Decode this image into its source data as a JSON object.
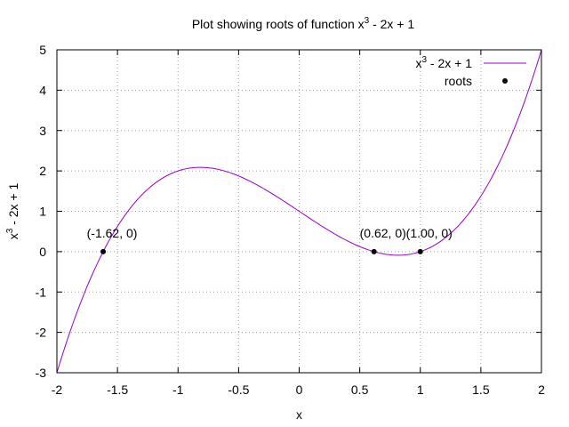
{
  "chart_data": {
    "type": "line",
    "title": {
      "prefix": "Plot showing roots of function x",
      "superscript": "3",
      "suffix": " - 2x + 1"
    },
    "xlabel": "x",
    "ylabel": {
      "prefix": "x",
      "superscript": "3",
      "suffix": " - 2x + 1"
    },
    "xlim": [
      -2,
      2
    ],
    "ylim": [
      -3,
      5
    ],
    "x_ticks": [
      "-2",
      "-1.5",
      "-1",
      "-0.5",
      "0",
      "0.5",
      "1",
      "1.5",
      "2"
    ],
    "y_ticks": [
      "-3",
      "-2",
      "-1",
      "0",
      "1",
      "2",
      "3",
      "4",
      "5"
    ],
    "grid": true,
    "legend_position": "top-right",
    "series": [
      {
        "name": {
          "prefix": "x",
          "superscript": "3",
          "suffix": " - 2x + 1"
        },
        "kind": "line",
        "color": "#9400d3",
        "function": "x^3 - 2x + 1",
        "points": [
          {
            "x": -2.0,
            "y": -3.0
          },
          {
            "x": -1.8,
            "y": -1.232
          },
          {
            "x": -1.6,
            "y": 0.104
          },
          {
            "x": -1.4,
            "y": 1.056
          },
          {
            "x": -1.2,
            "y": 1.672
          },
          {
            "x": -1.0,
            "y": 2.0
          },
          {
            "x": -0.8,
            "y": 2.088
          },
          {
            "x": -0.6,
            "y": 1.984
          },
          {
            "x": -0.4,
            "y": 1.736
          },
          {
            "x": -0.2,
            "y": 1.392
          },
          {
            "x": 0.0,
            "y": 1.0
          },
          {
            "x": 0.2,
            "y": 0.608
          },
          {
            "x": 0.4,
            "y": 0.264
          },
          {
            "x": 0.6,
            "y": 0.016
          },
          {
            "x": 0.8,
            "y": -0.088
          },
          {
            "x": 1.0,
            "y": 0.0
          },
          {
            "x": 1.2,
            "y": 0.328
          },
          {
            "x": 1.4,
            "y": 0.944
          },
          {
            "x": 1.6,
            "y": 1.896
          },
          {
            "x": 1.8,
            "y": 3.232
          },
          {
            "x": 2.0,
            "y": 5.0
          }
        ]
      },
      {
        "name": "roots",
        "kind": "points",
        "color": "#000000",
        "points": [
          {
            "x": -1.618,
            "y": 0,
            "label": "(-1.62, 0)"
          },
          {
            "x": 0.618,
            "y": 0,
            "label": "(0.62, 0)"
          },
          {
            "x": 1.0,
            "y": 0,
            "label": "(1.00, 0)"
          }
        ]
      }
    ]
  }
}
